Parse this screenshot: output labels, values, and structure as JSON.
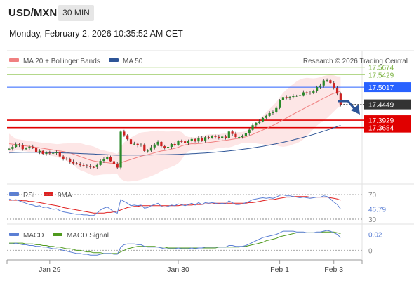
{
  "header": {
    "symbol": "USD/MXN",
    "timeframe": "30 MIN",
    "datetime": "Monday, February 2, 2026 10:35:52 AM CET"
  },
  "colors": {
    "ma20": "#f08080",
    "bollinger_fill": "#fde0e0",
    "ma50": "#2e5597",
    "candle_up": "#2a8a2a",
    "candle_down": "#cc2222",
    "resistance": "#9ccc65",
    "pivot": "#2962ff",
    "support": "#e00000",
    "last_price": "#333333",
    "rsi": "#5b7fd4",
    "rsi_ma": "#e02020",
    "macd": "#5b7fd4",
    "macd_signal": "#4f9a1e"
  },
  "chart_data": [
    {
      "type": "candlestick",
      "legend": [
        {
          "label": "MA 20 + Bollinger Bands",
          "color": "#f08080"
        },
        {
          "label": "MA 50",
          "color": "#2e5597"
        }
      ],
      "credit": "Research © 2026 Trading Central",
      "price_levels": [
        {
          "label": "17.5674",
          "value": 17.5674,
          "kind": "resistance"
        },
        {
          "label": "17.5429",
          "value": 17.5429,
          "kind": "resistance"
        },
        {
          "label": "17.5017",
          "value": 17.5017,
          "kind": "pivot"
        },
        {
          "label": "17.3929",
          "value": 17.3929,
          "kind": "support"
        },
        {
          "label": "17.3684",
          "value": 17.3684,
          "kind": "support"
        }
      ],
      "last_price": {
        "label": "17.4449",
        "value": 17.4449
      },
      "ylim": [
        17.18,
        17.62
      ],
      "x_ticks": [
        {
          "label": "Jan 29",
          "index": 12
        },
        {
          "label": "Jan 30",
          "index": 50
        },
        {
          "label": "Feb 1",
          "index": 80
        },
        {
          "label": "Feb 3",
          "index": 96
        }
      ],
      "close": [
        17.2986,
        17.3048,
        17.3134,
        17.3114,
        17.2975,
        17.3002,
        17.3056,
        17.3023,
        17.2865,
        17.2918,
        17.2818,
        17.2855,
        17.2838,
        17.2848,
        17.2869,
        17.2735,
        17.2659,
        17.2645,
        17.2565,
        17.2505,
        17.2496,
        17.2444,
        17.2437,
        17.242,
        17.2386,
        17.2385,
        17.2452,
        17.2586,
        17.2656,
        17.2726,
        17.2576,
        17.2484,
        17.2367,
        17.3551,
        17.343,
        17.3301,
        17.3141,
        17.3151,
        17.3108,
        17.3125,
        17.2914,
        17.2925,
        17.3034,
        17.3126,
        17.3215,
        17.3071,
        17.3026,
        17.3049,
        17.3144,
        17.3118,
        17.324,
        17.3233,
        17.3171,
        17.3249,
        17.3309,
        17.3232,
        17.3349,
        17.3261,
        17.3368,
        17.3352,
        17.3402,
        17.3379,
        17.3334,
        17.3389,
        17.3341,
        17.3555,
        17.3476,
        17.3372,
        17.3374,
        17.3398,
        17.3491,
        17.3614,
        17.3763,
        17.384,
        17.3892,
        17.4006,
        17.4074,
        17.4162,
        17.4206,
        17.433,
        17.4588,
        17.4688,
        17.4656,
        17.4693,
        17.473,
        17.4732,
        17.4753,
        17.4845,
        17.4832,
        17.4821,
        17.4897,
        17.5016,
        17.5071,
        17.5236,
        17.5246,
        17.5156,
        17.4997,
        17.4803,
        17.4449
      ],
      "ma20": [
        17.3153,
        17.314,
        17.3127,
        17.3113,
        17.3098,
        17.3082,
        17.3067,
        17.3051,
        17.3035,
        17.3018,
        17.3001,
        17.2984,
        17.2967,
        17.2949,
        17.2931,
        17.2913,
        17.2897,
        17.2875,
        17.2846,
        17.2811,
        17.277,
        17.2728,
        17.2691,
        17.265,
        17.2614,
        17.2584,
        17.2564,
        17.2545,
        17.2538,
        17.2526,
        17.2514,
        17.25,
        17.2484,
        17.2525,
        17.2565,
        17.2599,
        17.2634,
        17.2671,
        17.2706,
        17.2743,
        17.277,
        17.2794,
        17.2824,
        17.2855,
        17.2886,
        17.2914,
        17.2931,
        17.2948,
        17.2976,
        17.3002,
        17.3035,
        17.3082,
        17.3115,
        17.3139,
        17.3154,
        17.315,
        17.316,
        17.3169,
        17.3183,
        17.3194,
        17.3208,
        17.3225,
        17.3239,
        17.3252,
        17.3266,
        17.3283,
        17.33,
        17.3316,
        17.3335,
        17.3359,
        17.3382,
        17.3416,
        17.3461,
        17.3509,
        17.3555,
        17.3604,
        17.3652,
        17.3704,
        17.3756,
        17.3813,
        17.3877,
        17.3941,
        17.4002,
        17.4066,
        17.4127,
        17.4187,
        17.4246,
        17.4303,
        17.4365,
        17.442,
        17.4474,
        17.4533,
        17.4592,
        17.4652,
        17.4705,
        17.4769,
        17.4813,
        17.485,
        17.4883
      ],
      "ma50": [
        17.2862,
        17.2864,
        17.2866,
        17.2868,
        17.2869,
        17.2869,
        17.2869,
        17.2869,
        17.2869,
        17.2868,
        17.2867,
        17.2865,
        17.2863,
        17.2861,
        17.2858,
        17.2855,
        17.2852,
        17.2848,
        17.2844,
        17.284,
        17.2836,
        17.2831,
        17.2826,
        17.2821,
        17.2816,
        17.2811,
        17.2806,
        17.28,
        17.2795,
        17.279,
        17.2785,
        17.278,
        17.2775,
        17.2776,
        17.2776,
        17.2777,
        17.2777,
        17.2778,
        17.2779,
        17.278,
        17.2781,
        17.2782,
        17.2783,
        17.2785,
        17.2786,
        17.2788,
        17.279,
        17.2793,
        17.2796,
        17.2799,
        17.2803,
        17.2807,
        17.2812,
        17.2817,
        17.2823,
        17.2829,
        17.2835,
        17.2842,
        17.2849,
        17.2857,
        17.2866,
        17.2875,
        17.2885,
        17.2895,
        17.2906,
        17.2917,
        17.2929,
        17.2942,
        17.2955,
        17.2969,
        17.2984,
        17.2999,
        17.3016,
        17.3033,
        17.3051,
        17.307,
        17.3089,
        17.311,
        17.3131,
        17.3153,
        17.3177,
        17.3201,
        17.3226,
        17.3252,
        17.3279,
        17.3307,
        17.3336,
        17.3366,
        17.3397,
        17.3428,
        17.3461,
        17.3495,
        17.353,
        17.3566,
        17.3602,
        17.364,
        17.3678,
        17.3717,
        17.3757
      ]
    },
    {
      "type": "line",
      "legend": [
        {
          "label": "RSI",
          "color": "#5b7fd4"
        },
        {
          "label": "9MA",
          "color": "#e02020"
        }
      ],
      "levels": [
        {
          "label": "70",
          "value": 70
        },
        {
          "label": "30",
          "value": 30
        }
      ],
      "last_value": {
        "label": "46.79",
        "value": 46.79
      },
      "ylim": [
        22,
        85
      ],
      "series": [
        {
          "name": "RSI",
          "values": [
            63,
            61,
            62,
            60,
            58,
            56,
            54,
            53,
            51,
            52,
            49,
            50,
            48,
            46,
            47,
            44,
            42,
            41,
            40,
            39,
            38,
            38,
            37,
            37,
            36,
            36,
            40,
            45,
            48,
            50,
            46,
            42,
            40,
            62,
            59,
            56,
            52,
            53,
            52,
            53,
            48,
            49,
            52,
            54,
            56,
            51,
            50,
            51,
            53,
            52,
            55,
            54,
            52,
            54,
            56,
            53,
            57,
            54,
            57,
            56,
            57,
            56,
            55,
            56,
            55,
            60,
            57,
            54,
            54,
            55,
            57,
            59,
            62,
            63,
            64,
            65,
            64,
            65,
            64,
            66,
            69,
            70,
            68,
            68,
            67,
            66,
            65,
            66,
            65,
            64,
            65,
            66,
            66,
            68,
            67,
            63,
            58,
            54,
            46.79
          ]
        },
        {
          "name": "9MA",
          "values": [
            61,
            61,
            61,
            61,
            60,
            60,
            59,
            59,
            58,
            57,
            56,
            55,
            54,
            53,
            52,
            51,
            49,
            48,
            47,
            46,
            45,
            44,
            43,
            42,
            41,
            40,
            40,
            40,
            40,
            41,
            41,
            42,
            43,
            45,
            47,
            49,
            50,
            51,
            51,
            52,
            52,
            52,
            52,
            52,
            52,
            52,
            52,
            52,
            52,
            52,
            52,
            53,
            53,
            53,
            53,
            54,
            54,
            54,
            55,
            55,
            55,
            56,
            56,
            56,
            56,
            56,
            56,
            56,
            56,
            56,
            56,
            57,
            57,
            58,
            59,
            60,
            61,
            62,
            62,
            63,
            64,
            65,
            66,
            66,
            67,
            67,
            67,
            67,
            67,
            66,
            66,
            66,
            66,
            66,
            66,
            65,
            64,
            63,
            61
          ]
        }
      ]
    },
    {
      "type": "line",
      "legend": [
        {
          "label": "MACD",
          "color": "#5b7fd4"
        },
        {
          "label": "MACD Signal",
          "color": "#4f9a1e"
        }
      ],
      "zero_label": "0",
      "last_value": {
        "label": "0.02",
        "value": 0.02
      },
      "ylim": [
        -0.012,
        0.032
      ],
      "series": [
        {
          "name": "MACD",
          "values": [
            0.008,
            0.008,
            0.009,
            0.008,
            0.007,
            0.007,
            0.006,
            0.006,
            0.005,
            0.005,
            0.004,
            0.004,
            0.003,
            0.002,
            0.002,
            0.001,
            0.0,
            -0.001,
            -0.002,
            -0.003,
            -0.004,
            -0.004,
            -0.005,
            -0.005,
            -0.006,
            -0.006,
            -0.006,
            -0.005,
            -0.004,
            -0.004,
            -0.004,
            -0.005,
            -0.005,
            0.004,
            0.007,
            0.008,
            0.008,
            0.008,
            0.007,
            0.007,
            0.005,
            0.004,
            0.004,
            0.004,
            0.004,
            0.003,
            0.002,
            0.002,
            0.002,
            0.002,
            0.003,
            0.002,
            0.002,
            0.002,
            0.003,
            0.002,
            0.003,
            0.003,
            0.004,
            0.004,
            0.004,
            0.004,
            0.004,
            0.004,
            0.004,
            0.006,
            0.006,
            0.005,
            0.005,
            0.005,
            0.006,
            0.008,
            0.01,
            0.012,
            0.014,
            0.016,
            0.017,
            0.018,
            0.019,
            0.02,
            0.022,
            0.024,
            0.024,
            0.024,
            0.024,
            0.023,
            0.023,
            0.023,
            0.022,
            0.022,
            0.022,
            0.023,
            0.023,
            0.024,
            0.025,
            0.024,
            0.022,
            0.02,
            0.016
          ]
        },
        {
          "name": "MACD Signal",
          "values": [
            0.009,
            0.009,
            0.009,
            0.009,
            0.009,
            0.008,
            0.008,
            0.008,
            0.007,
            0.007,
            0.006,
            0.006,
            0.005,
            0.005,
            0.004,
            0.004,
            0.003,
            0.002,
            0.002,
            0.001,
            0.0,
            0.0,
            -0.001,
            -0.002,
            -0.002,
            -0.003,
            -0.003,
            -0.003,
            -0.004,
            -0.004,
            -0.004,
            -0.004,
            -0.004,
            -0.002,
            0.0,
            0.002,
            0.003,
            0.004,
            0.005,
            0.005,
            0.005,
            0.005,
            0.005,
            0.005,
            0.004,
            0.004,
            0.004,
            0.003,
            0.003,
            0.003,
            0.003,
            0.003,
            0.003,
            0.003,
            0.003,
            0.003,
            0.003,
            0.003,
            0.003,
            0.003,
            0.003,
            0.003,
            0.004,
            0.004,
            0.004,
            0.004,
            0.004,
            0.004,
            0.004,
            0.005,
            0.005,
            0.006,
            0.007,
            0.008,
            0.009,
            0.01,
            0.012,
            0.013,
            0.014,
            0.015,
            0.017,
            0.018,
            0.019,
            0.02,
            0.021,
            0.022,
            0.022,
            0.022,
            0.022,
            0.022,
            0.022,
            0.022,
            0.022,
            0.023,
            0.023,
            0.023,
            0.023,
            0.022,
            0.021
          ]
        }
      ]
    }
  ]
}
